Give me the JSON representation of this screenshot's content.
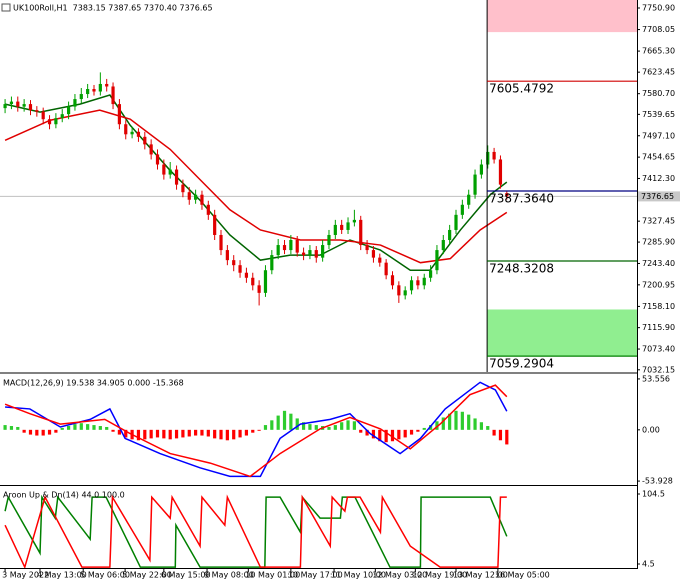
{
  "chart_data": [
    {
      "type": "candlestick",
      "title": "UK100Roll,H1  7383.15 7387.65 7370.40 7376.65",
      "xlim": [
        -0.8,
        99.5
      ],
      "ylim": [
        7027.8,
        7766.8
      ],
      "yticks": [
        {
          "value": 7750.9,
          "label": "7750.90"
        },
        7708.05,
        {
          "value": 7665.3,
          "label": "7665.30"
        },
        7623.45,
        {
          "value": 7580.7,
          "label": "7580.70"
        },
        7539.65,
        {
          "value": 7497.1,
          "label": "7497.10"
        },
        7454.65,
        {
          "value": 7412.3,
          "label": "7412.30"
        },
        7327.45,
        {
          "value": 7285.9,
          "label": "7285.90"
        },
        {
          "value": 7243.4,
          "label": "7243.40"
        },
        7200.95,
        {
          "value": 7158.1,
          "label": "7158.10"
        },
        {
          "value": 7115.9,
          "label": "7115.90"
        },
        {
          "value": 7073.4,
          "label": "7073.40"
        },
        7032.15
      ],
      "open": [
        7552,
        7560,
        7565,
        7555,
        7560,
        7548,
        7545,
        7530,
        7520,
        7532,
        7540,
        7555,
        7570,
        7580,
        7590,
        7585,
        7600,
        7595,
        7560,
        7520,
        7500,
        7505,
        7495,
        7480,
        7460,
        7440,
        7420,
        7430,
        7400,
        7385,
        7370,
        7380,
        7360,
        7340,
        7300,
        7270,
        7250,
        7240,
        7225,
        7215,
        7200,
        7185,
        7230,
        7260,
        7280,
        7270,
        7290,
        7265,
        7260,
        7270,
        7255,
        7280,
        7300,
        7320,
        7310,
        7325,
        7330,
        7280,
        7270,
        7255,
        7245,
        7220,
        7200,
        7180,
        7190,
        7210,
        7200,
        7215,
        7230,
        7270,
        7290,
        7310,
        7340,
        7360,
        7380,
        7420,
        7440,
        7465,
        7450,
        7383.15
      ],
      "high": [
        7570,
        7575,
        7575,
        7570,
        7568,
        7556,
        7553,
        7538,
        7542,
        7550,
        7565,
        7580,
        7592,
        7600,
        7598,
        7623,
        7610,
        7603,
        7570,
        7528,
        7515,
        7512,
        7505,
        7490,
        7470,
        7450,
        7445,
        7438,
        7410,
        7395,
        7390,
        7388,
        7368,
        7350,
        7310,
        7280,
        7260,
        7250,
        7235,
        7225,
        7210,
        7240,
        7270,
        7292,
        7290,
        7300,
        7298,
        7275,
        7280,
        7278,
        7290,
        7310,
        7330,
        7330,
        7335,
        7350,
        7338,
        7290,
        7278,
        7263,
        7252,
        7228,
        7208,
        7198,
        7218,
        7218,
        7223,
        7240,
        7280,
        7300,
        7320,
        7350,
        7370,
        7390,
        7430,
        7450,
        7478,
        7473,
        7458,
        7387.65
      ],
      "low": [
        7542,
        7550,
        7545,
        7545,
        7538,
        7535,
        7520,
        7510,
        7512,
        7524,
        7530,
        7547,
        7562,
        7572,
        7577,
        7577,
        7585,
        7550,
        7510,
        7490,
        7492,
        7485,
        7470,
        7450,
        7430,
        7410,
        7412,
        7390,
        7375,
        7360,
        7362,
        7350,
        7330,
        7290,
        7260,
        7240,
        7228,
        7215,
        7205,
        7190,
        7160,
        7177,
        7222,
        7252,
        7262,
        7262,
        7257,
        7250,
        7252,
        7245,
        7247,
        7272,
        7292,
        7302,
        7302,
        7317,
        7270,
        7262,
        7245,
        7237,
        7212,
        7192,
        7165,
        7172,
        7182,
        7192,
        7192,
        7207,
        7222,
        7262,
        7282,
        7302,
        7332,
        7352,
        7372,
        7412,
        7432,
        7442,
        7392,
        7370.4
      ],
      "close": [
        7560,
        7565,
        7555,
        7560,
        7548,
        7545,
        7530,
        7520,
        7532,
        7540,
        7555,
        7570,
        7580,
        7590,
        7585,
        7600,
        7595,
        7560,
        7520,
        7500,
        7505,
        7495,
        7480,
        7460,
        7440,
        7420,
        7430,
        7400,
        7385,
        7370,
        7380,
        7360,
        7340,
        7300,
        7270,
        7250,
        7240,
        7225,
        7215,
        7200,
        7185,
        7230,
        7260,
        7280,
        7270,
        7290,
        7265,
        7260,
        7270,
        7255,
        7280,
        7300,
        7320,
        7310,
        7325,
        7330,
        7280,
        7270,
        7255,
        7245,
        7220,
        7200,
        7180,
        7190,
        7210,
        7200,
        7215,
        7230,
        7270,
        7290,
        7310,
        7340,
        7360,
        7380,
        7420,
        7440,
        7465,
        7450,
        7400,
        7376.65
      ],
      "up_color": "#00a000",
      "down_color": "#e00000",
      "moving_averages": [
        {
          "color": "#006400",
          "x": [
            0,
            5.5,
            11.8,
            16.5,
            19.7,
            26,
            30.7,
            35.4,
            40.2,
            44.9,
            49.6,
            54.3,
            59.1,
            63.8,
            66.9,
            71.7,
            76.4,
            79
          ],
          "values": [
            7560,
            7544,
            7560,
            7578,
            7518,
            7428,
            7369,
            7300,
            7250,
            7260,
            7260,
            7290,
            7270,
            7230,
            7230,
            7310,
            7380,
            7405
          ]
        },
        {
          "color": "#e00000",
          "x": [
            0,
            7.1,
            14.9,
            19.7,
            26,
            30.7,
            35.4,
            40.2,
            46.5,
            52.8,
            59.1,
            65.4,
            70.1,
            74.8,
            79
          ],
          "values": [
            7488,
            7528,
            7548,
            7530,
            7470,
            7410,
            7350,
            7310,
            7290,
            7290,
            7280,
            7245,
            7253,
            7310,
            7345
          ]
        }
      ],
      "bid": 7376.65,
      "vertical_line": 75.9,
      "zones": [
        {
          "from": 7703,
          "to": 7766.8,
          "color": "#ffc0cb"
        },
        {
          "from": 7059.2904,
          "to": 7152,
          "color": "#90ee90"
        }
      ],
      "levels": {
        "values": [
          7605.4792,
          7387.364,
          7248.3208,
          7059.2904
        ],
        "value_labels": [
          "7605.4792",
          "7387.3640",
          "7248.3208",
          "7059.2904"
        ],
        "colors": [
          "#d00000",
          "#000080",
          "#006400",
          "#008000"
        ]
      }
    },
    {
      "type": "macd",
      "title": "MACD(12,26,9) 19.538 34.905 0.000 -15.368",
      "xlim": [
        -0.8,
        99.5
      ],
      "ylim": [
        -57,
        57.7
      ],
      "yticks": [
        53.556,
        {
          "value": 0,
          "label": "0.00"
        },
        -53.928
      ],
      "histogram": {
        "up_color": "#2ecc2e",
        "down_color": "#ff0000",
        "values": [
          5,
          4,
          3,
          -3,
          -5,
          -6,
          -6,
          -5,
          -3,
          2,
          4,
          6,
          7,
          6,
          5,
          4,
          3,
          -2,
          -5,
          -8,
          -10,
          -11,
          -10,
          -9,
          -8,
          -9,
          -10,
          -9,
          -8,
          -7,
          -6,
          -6,
          -7,
          -9,
          -10,
          -11,
          -10,
          -8,
          -6,
          -3,
          -1,
          5,
          10,
          15,
          20,
          17,
          12,
          8,
          6,
          5,
          4,
          3,
          5,
          8,
          10,
          9,
          -3,
          -6,
          -9,
          -12,
          -13,
          -12,
          -10,
          -8,
          -5,
          -2,
          2,
          5,
          9,
          13,
          17,
          20,
          19,
          16,
          12,
          8,
          4,
          -6,
          -11,
          -15.368
        ]
      },
      "macd_line": {
        "color": "#0000ff",
        "x": [
          0,
          3.9,
          8.7,
          13.4,
          16.5,
          18.9,
          24.4,
          30.7,
          35.4,
          40.2,
          43.3,
          46.5,
          51.2,
          54.3,
          57.5,
          62.2,
          65.4,
          69.3,
          74.8,
          77.2,
          79
        ],
        "values": [
          24,
          22,
          3,
          11,
          22,
          -9,
          -25,
          -40,
          -49,
          -49,
          -9,
          6,
          11,
          17,
          -4,
          -25,
          -9,
          22,
          50,
          42,
          19.538
        ]
      },
      "signal_line": {
        "color": "#ff0000",
        "x": [
          0,
          3.9,
          8.7,
          15.7,
          19.7,
          26,
          32.3,
          38.6,
          43.3,
          49.6,
          54.3,
          59.1,
          63.8,
          68.5,
          73.2,
          77.2,
          79
        ],
        "values": [
          27,
          17,
          6,
          11,
          -4,
          -25,
          -35,
          -49,
          -25,
          1,
          13,
          1,
          -20,
          6,
          37,
          47,
          34.905
        ]
      }
    },
    {
      "type": "aroon",
      "title": "Aroon Up & Dn(14) 44.0 100.0",
      "xlim": [
        -0.8,
        99.5
      ],
      "ylim": [
        -1.2,
        114.5
      ],
      "yticks": [
        104.5,
        4.5
      ],
      "xticks": [
        {
          "value": 0,
          "label": "3 May 2022"
        },
        {
          "value": 5.5,
          "label": "4 May 13:00"
        },
        {
          "value": 12.3,
          "label": "5 May 06:00"
        },
        {
          "value": 18.9,
          "label": "5 May 22:00"
        },
        {
          "value": 25,
          "label": "6 May 15:00"
        },
        {
          "value": 31.8,
          "label": "9 May 08:00"
        },
        {
          "value": 38.3,
          "label": "10 May 01:00"
        },
        {
          "value": 45,
          "label": "10 May 17:00"
        },
        {
          "value": 51.8,
          "label": "11 May 10:00"
        },
        {
          "value": 58.3,
          "label": "12 May 03:00"
        },
        {
          "value": 64.6,
          "label": "12 May 19:00"
        },
        {
          "value": 71,
          "label": "13 May 12:00"
        },
        {
          "value": 77.6,
          "label": "16 May 05:00"
        }
      ],
      "up": {
        "color": "#008000",
        "x": [
          0,
          0.5,
          5.5,
          5.8,
          7.9,
          8.3,
          13.4,
          13.7,
          15.9,
          21.3,
          26.8,
          26.9,
          30.7,
          40.9,
          41.1,
          43.3,
          46.5,
          46.8,
          49.6,
          52.8,
          53.1,
          55.1,
          60.6,
          65.4,
          65.5,
          76.4,
          79
        ],
        "values": [
          80,
          100,
          20,
          100,
          70,
          100,
          40,
          100,
          100,
          0,
          0,
          60,
          0,
          0,
          100,
          100,
          50,
          100,
          70,
          70,
          100,
          100,
          0,
          0,
          100,
          100,
          44
        ]
      },
      "down": {
        "color": "#ff0000",
        "x": [
          0,
          3.1,
          6.3,
          12.1,
          16.5,
          16.9,
          22.8,
          23.1,
          26,
          26.3,
          30.7,
          31,
          34.6,
          35,
          40.2,
          46.5,
          46.8,
          51.2,
          51.5,
          53.5,
          53.9,
          55.9,
          59.1,
          59.4,
          63.8,
          68.5,
          77.6,
          78,
          79
        ],
        "values": [
          60,
          0,
          100,
          0,
          0,
          100,
          10,
          100,
          70,
          100,
          30,
          100,
          60,
          100,
          0,
          0,
          100,
          30,
          100,
          80,
          100,
          100,
          50,
          100,
          30,
          0,
          0,
          100,
          100
        ]
      }
    }
  ]
}
